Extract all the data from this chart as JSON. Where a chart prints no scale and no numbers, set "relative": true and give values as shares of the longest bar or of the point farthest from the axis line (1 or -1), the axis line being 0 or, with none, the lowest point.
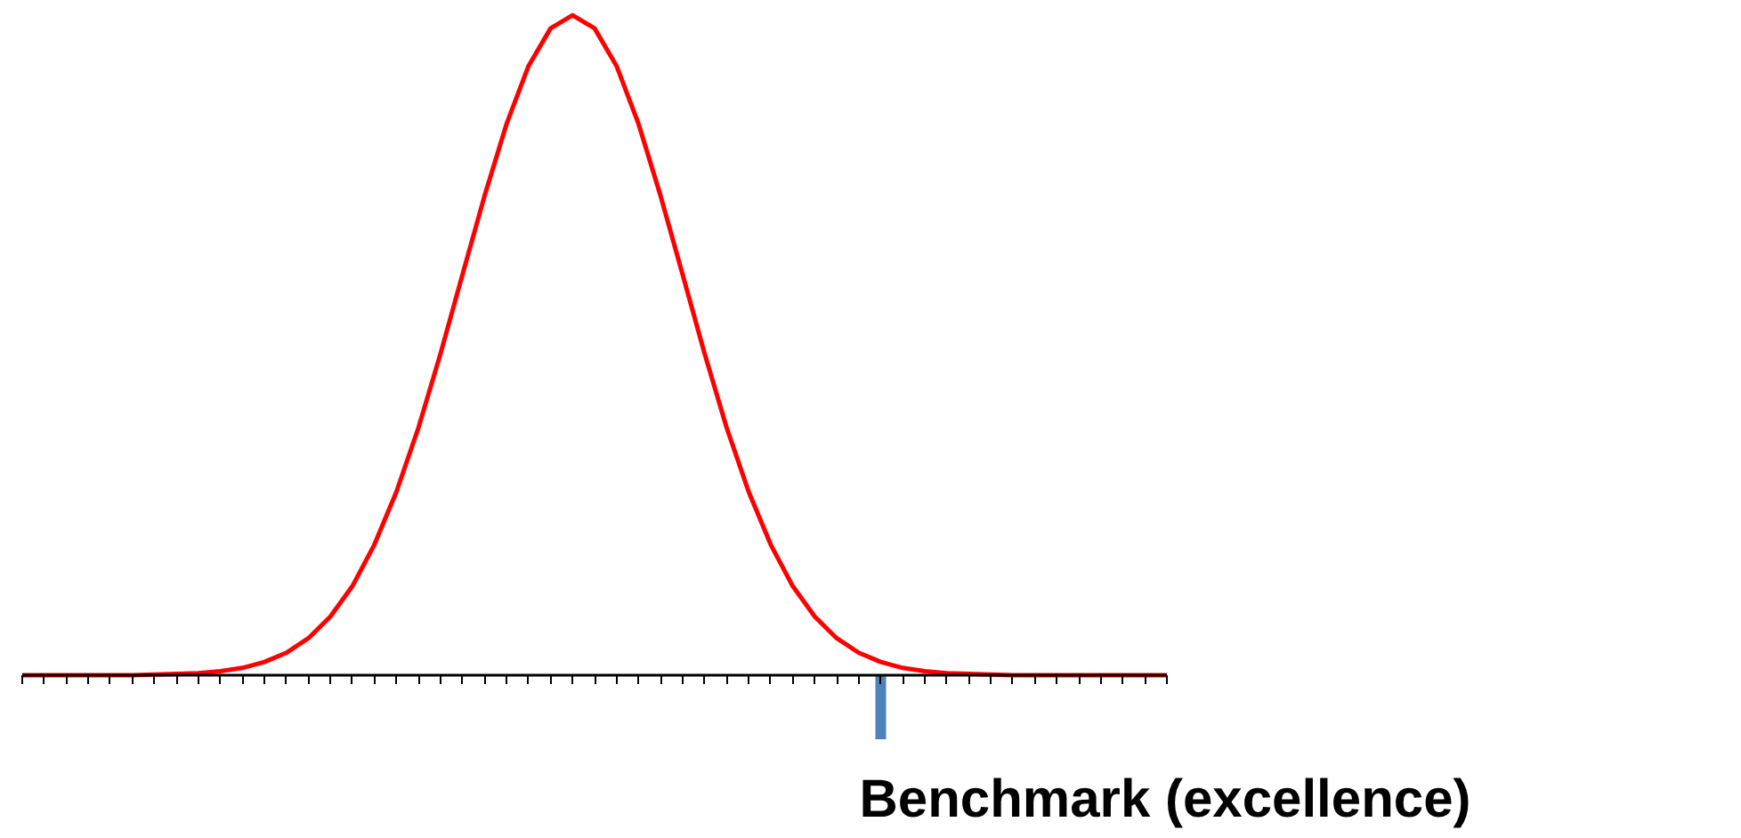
{
  "chart_data": {
    "type": "line",
    "relative": true,
    "categories": [
      null,
      null,
      null,
      null,
      null,
      null,
      null,
      null,
      null,
      null,
      null,
      null,
      null,
      null,
      null,
      null,
      null,
      null,
      null,
      null,
      null,
      null,
      null,
      null,
      null,
      null,
      null,
      null,
      null,
      null,
      null,
      null,
      null,
      null,
      null,
      null,
      null,
      null,
      null,
      null,
      null,
      null,
      null,
      null,
      null,
      null,
      null,
      null,
      null,
      null,
      null,
      null,
      null
    ],
    "series": [
      {
        "color": "#ff0000",
        "values": [
          0,
          0,
          0,
          0,
          0,
          0,
          0.001,
          0.002,
          0.003,
          0.006,
          0.011,
          0.02,
          0.034,
          0.056,
          0.089,
          0.135,
          0.198,
          0.278,
          0.375,
          0.487,
          0.607,
          0.726,
          0.835,
          0.923,
          0.98,
          1,
          0.98,
          0.923,
          0.835,
          0.726,
          0.607,
          0.487,
          0.375,
          0.278,
          0.198,
          0.135,
          0.089,
          0.056,
          0.034,
          0.02,
          0.011,
          0.006,
          0.003,
          0.002,
          0.001,
          0,
          0,
          0,
          0,
          0,
          0,
          0,
          0
        ]
      }
    ],
    "annotations": [
      "Benchmark (excellence)"
    ],
    "grid": false,
    "marker": "none",
    "line_style": "solid"
  }
}
